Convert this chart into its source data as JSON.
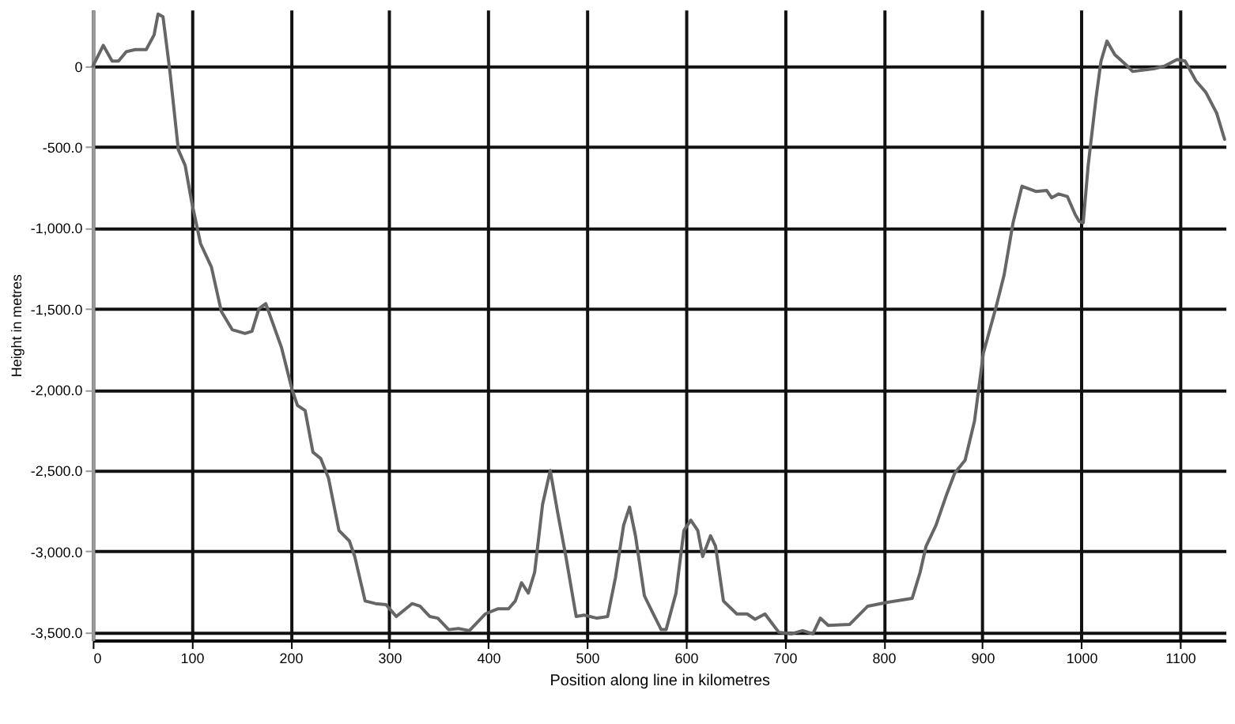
{
  "chart_data": {
    "type": "line",
    "xlabel": "Position along line in kilometres",
    "ylabel": "Height in metres",
    "x": [
      0,
      10.6,
      19.5,
      26,
      33.8,
      43,
      54,
      62,
      66,
      71,
      78,
      86.5,
      93.4,
      100,
      109,
      120,
      130,
      141,
      154,
      161,
      168,
      175,
      191,
      201.6,
      207,
      214.8,
      222.7,
      230.6,
      238.5,
      249,
      259.6,
      265,
      275.5,
      286,
      296.6,
      307,
      323,
      331,
      341,
      349,
      360,
      370,
      381,
      397,
      410,
      420.6,
      427.4,
      433.8,
      440.6,
      447,
      455,
      462.8,
      470.7,
      478.6,
      489,
      497,
      510,
      520.8,
      528.8,
      537,
      543,
      549,
      558,
      565.7,
      575,
      580,
      590,
      598,
      605,
      612,
      617,
      625,
      630,
      638,
      651.5,
      662,
      670,
      680,
      686,
      694,
      707,
      718,
      728.5,
      736,
      744,
      765.6,
      784,
      803,
      829,
      837,
      843,
      853,
      864,
      872,
      882.5,
      892,
      901,
      914,
      922,
      931,
      940,
      954,
      965,
      970,
      977,
      986,
      994,
      998,
      1002,
      1007,
      1015,
      1020,
      1026,
      1034,
      1044,
      1052,
      1073,
      1084,
      1097,
      1105,
      1116,
      1126,
      1137,
      1145
    ],
    "series": [
      {
        "color": "#666666",
        "values": [
          0,
          129,
          32,
          32,
          90,
          103,
          103,
          194,
          323,
          306,
          -32,
          -516,
          -613,
          -839,
          -1097,
          -1242,
          -1516,
          -1629,
          -1652,
          -1639,
          -1500,
          -1468,
          -1742,
          -2000,
          -2097,
          -2129,
          -2387,
          -2426,
          -2548,
          -2871,
          -2936,
          -3032,
          -3307,
          -3323,
          -3329,
          -3403,
          -3323,
          -3339,
          -3403,
          -3413,
          -3484,
          -3477,
          -3490,
          -3387,
          -3355,
          -3355,
          -3307,
          -3194,
          -3258,
          -3129,
          -2710,
          -2500,
          -2774,
          -3032,
          -3403,
          -3394,
          -3413,
          -3403,
          -3161,
          -2839,
          -2726,
          -2903,
          -3274,
          -3371,
          -3484,
          -3484,
          -3258,
          -2871,
          -2807,
          -2871,
          -3032,
          -2903,
          -2968,
          -3307,
          -3387,
          -3387,
          -3420,
          -3387,
          -3436,
          -3500,
          -3510,
          -3490,
          -3510,
          -3413,
          -3458,
          -3452,
          -3339,
          -3316,
          -3290,
          -3129,
          -2968,
          -2839,
          -2645,
          -2516,
          -2436,
          -2194,
          -1774,
          -1484,
          -1290,
          -968,
          -742,
          -774,
          -768,
          -813,
          -790,
          -806,
          -919,
          -960,
          -968,
          -613,
          -194,
          32,
          155,
          71,
          16,
          -32,
          -16,
          0,
          42,
          32,
          -90,
          -161,
          -290,
          -452
        ]
      }
    ],
    "xlim": [
      0,
      1146
    ],
    "xticks": [
      0,
      100,
      200,
      300,
      400,
      500,
      600,
      700,
      800,
      900,
      1000,
      1100
    ],
    "ylim": [
      -3550,
      350
    ],
    "yticks": [
      0,
      {
        "value": -500,
        "label": "-500.0"
      },
      {
        "value": -1000,
        "label": "-1,000.0"
      },
      {
        "value": -1500,
        "label": "-1,500.0"
      },
      {
        "value": -2000,
        "label": "-2,000.0"
      },
      {
        "value": -2500,
        "label": "-2,500.0"
      },
      {
        "value": -3000,
        "label": "-3,000.0"
      },
      {
        "value": -3500,
        "label": "-3,500.0"
      }
    ],
    "grid": true,
    "legend": false,
    "marker": "none",
    "line_style": "solid"
  }
}
